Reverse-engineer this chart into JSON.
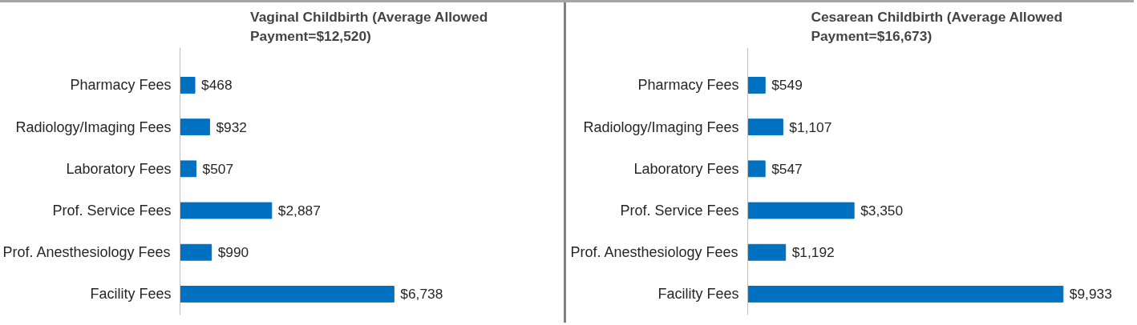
{
  "chart_data": [
    {
      "type": "bar",
      "orientation": "horizontal",
      "title": "Vaginal Childbirth (Average Allowed\nPayment=$12,520)",
      "categories": [
        "Pharmacy Fees",
        "Radiology/Imaging Fees",
        "Laboratory Fees",
        "Prof. Service Fees",
        "Prof. Anesthesiology Fees",
        "Facility Fees"
      ],
      "values": [
        468,
        932,
        507,
        2887,
        990,
        6738
      ],
      "value_labels": [
        "$468",
        "$932",
        "$507",
        "$2,887",
        "$990",
        "$6,738"
      ],
      "color": "#0070c0"
    },
    {
      "type": "bar",
      "orientation": "horizontal",
      "title": "Cesarean Childbirth (Average Allowed\nPayment=$16,673)",
      "categories": [
        "Pharmacy Fees",
        "Radiology/Imaging Fees",
        "Laboratory Fees",
        "Prof. Service Fees",
        "Prof. Anesthesiology Fees",
        "Facility Fees"
      ],
      "values": [
        549,
        1107,
        547,
        3350,
        1192,
        9933
      ],
      "value_labels": [
        "$549",
        "$1,107",
        "$547",
        "$3,350",
        "$1,192",
        "$9,933"
      ],
      "color": "#0070c0"
    }
  ]
}
